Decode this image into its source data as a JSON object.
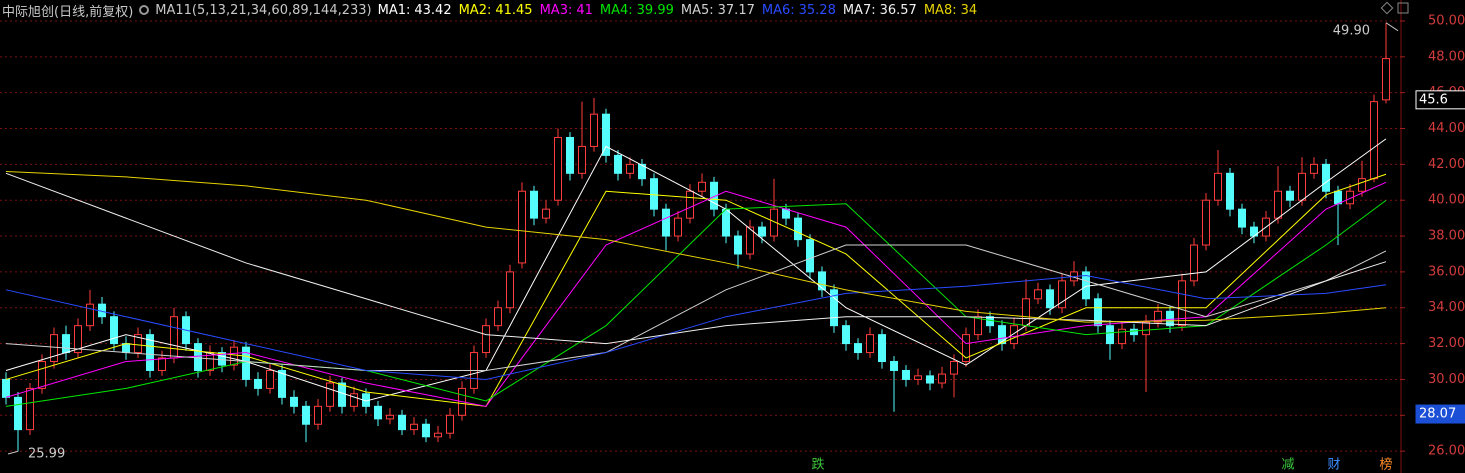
{
  "chart_data": {
    "type": "candlestick",
    "title": "中际旭创(日线,前复权)",
    "indicator": "MA11(5,13,21,34,60,89,144,233)",
    "ylim": [
      24.78,
      51.17
    ],
    "yticks": [
      {
        "value": 26,
        "label": "26.00"
      },
      {
        "value": 28,
        "label": "28.00"
      },
      {
        "value": 30,
        "label": "30.00"
      },
      {
        "value": 32,
        "label": "32.00"
      },
      {
        "value": 34,
        "label": "34.00"
      },
      {
        "value": 36,
        "label": "36.00"
      },
      {
        "value": 38,
        "label": "38.00"
      },
      {
        "value": 40,
        "label": "40.00"
      },
      {
        "value": 42,
        "label": "42.00"
      },
      {
        "value": 44,
        "label": "44.00"
      },
      {
        "value": 46,
        "label": "46.00"
      },
      {
        "value": 48,
        "label": "48.00"
      },
      {
        "value": 50,
        "label": "50.00"
      }
    ],
    "grid": true,
    "up_color": "#ff3c3c",
    "down_color": "#54fcfc",
    "ohlc": [
      [
        30.0,
        30.4,
        28.6,
        29.0
      ],
      [
        29.0,
        29.3,
        25.99,
        27.2
      ],
      [
        27.2,
        29.8,
        26.9,
        29.5
      ],
      [
        29.5,
        31.4,
        29.2,
        31.0
      ],
      [
        31.0,
        32.9,
        30.6,
        32.5
      ],
      [
        32.5,
        33.0,
        31.1,
        31.5
      ],
      [
        31.5,
        33.4,
        31.2,
        33.0
      ],
      [
        33.0,
        35.0,
        32.7,
        34.2
      ],
      [
        34.2,
        34.6,
        33.1,
        33.5
      ],
      [
        33.5,
        33.8,
        31.6,
        32.0
      ],
      [
        32.0,
        32.4,
        31.1,
        31.5
      ],
      [
        31.5,
        32.9,
        31.2,
        32.5
      ],
      [
        32.5,
        32.8,
        30.1,
        30.5
      ],
      [
        30.5,
        31.6,
        30.2,
        31.2
      ],
      [
        31.2,
        34.0,
        30.9,
        33.5
      ],
      [
        33.5,
        33.8,
        31.6,
        32.0
      ],
      [
        32.0,
        32.3,
        30.1,
        30.5
      ],
      [
        30.5,
        31.9,
        30.2,
        31.5
      ],
      [
        31.5,
        31.8,
        30.4,
        30.8
      ],
      [
        30.8,
        32.2,
        30.5,
        31.8
      ],
      [
        31.8,
        32.1,
        29.6,
        30.0
      ],
      [
        30.0,
        30.4,
        29.1,
        29.5
      ],
      [
        29.5,
        30.9,
        29.2,
        30.5
      ],
      [
        30.5,
        30.8,
        28.6,
        29.0
      ],
      [
        29.0,
        29.4,
        28.1,
        28.5
      ],
      [
        28.5,
        28.8,
        26.5,
        27.5
      ],
      [
        27.5,
        28.9,
        27.2,
        28.5
      ],
      [
        28.5,
        30.2,
        28.2,
        29.8
      ],
      [
        29.8,
        30.1,
        28.1,
        28.5
      ],
      [
        28.5,
        29.6,
        28.2,
        29.2
      ],
      [
        29.2,
        29.5,
        28.1,
        28.5
      ],
      [
        28.5,
        28.8,
        27.4,
        27.8
      ],
      [
        27.8,
        28.4,
        27.5,
        28.0
      ],
      [
        28.0,
        28.3,
        26.9,
        27.2
      ],
      [
        27.2,
        27.9,
        26.9,
        27.5
      ],
      [
        27.5,
        27.8,
        26.5,
        26.8
      ],
      [
        26.8,
        27.4,
        26.5,
        27.0
      ],
      [
        27.0,
        28.4,
        26.7,
        28.0
      ],
      [
        28.0,
        29.9,
        27.7,
        29.5
      ],
      [
        29.5,
        31.9,
        29.2,
        31.5
      ],
      [
        31.5,
        33.4,
        31.2,
        33.0
      ],
      [
        33.0,
        34.4,
        32.7,
        34.0
      ],
      [
        34.0,
        36.4,
        33.7,
        36.0
      ],
      [
        36.5,
        41.0,
        36.2,
        40.5
      ],
      [
        40.5,
        40.8,
        38.6,
        39.0
      ],
      [
        39.0,
        40.0,
        38.7,
        39.5
      ],
      [
        40.0,
        44.0,
        39.7,
        43.5
      ],
      [
        43.5,
        43.8,
        41.1,
        41.5
      ],
      [
        41.5,
        45.5,
        41.2,
        43.0
      ],
      [
        43.0,
        45.7,
        42.7,
        44.8
      ],
      [
        44.8,
        45.1,
        42.1,
        42.5
      ],
      [
        42.5,
        42.8,
        41.1,
        41.5
      ],
      [
        41.5,
        42.4,
        41.2,
        42.0
      ],
      [
        42.0,
        42.3,
        40.8,
        41.2
      ],
      [
        41.2,
        41.5,
        39.1,
        39.5
      ],
      [
        39.5,
        39.8,
        37.2,
        38.0
      ],
      [
        38.0,
        39.4,
        37.7,
        39.0
      ],
      [
        39.0,
        40.9,
        38.7,
        40.5
      ],
      [
        40.5,
        41.5,
        40.2,
        41.0
      ],
      [
        41.0,
        41.3,
        39.1,
        39.5
      ],
      [
        39.5,
        39.8,
        37.6,
        38.0
      ],
      [
        38.0,
        38.3,
        36.2,
        37.0
      ],
      [
        37.0,
        38.9,
        36.7,
        38.5
      ],
      [
        38.5,
        38.8,
        37.6,
        38.0
      ],
      [
        38.0,
        41.2,
        37.7,
        39.5
      ],
      [
        39.5,
        39.8,
        38.6,
        39.0
      ],
      [
        39.0,
        39.3,
        37.4,
        37.8
      ],
      [
        37.8,
        38.1,
        35.6,
        36.0
      ],
      [
        36.0,
        36.3,
        34.6,
        35.0
      ],
      [
        35.0,
        35.3,
        32.6,
        33.0
      ],
      [
        33.0,
        33.3,
        31.6,
        32.0
      ],
      [
        32.0,
        32.3,
        31.1,
        31.5
      ],
      [
        31.5,
        32.9,
        31.2,
        32.5
      ],
      [
        32.5,
        32.8,
        30.6,
        31.0
      ],
      [
        31.0,
        31.3,
        28.2,
        30.5
      ],
      [
        30.5,
        30.8,
        29.6,
        30.0
      ],
      [
        30.0,
        30.6,
        29.7,
        30.2
      ],
      [
        30.2,
        30.5,
        29.4,
        29.8
      ],
      [
        29.8,
        30.7,
        29.5,
        30.3
      ],
      [
        30.3,
        31.4,
        29.0,
        31.0
      ],
      [
        31.0,
        32.9,
        30.7,
        32.5
      ],
      [
        32.5,
        33.9,
        32.2,
        33.5
      ],
      [
        33.5,
        33.8,
        32.6,
        33.0
      ],
      [
        33.0,
        33.3,
        31.6,
        32.0
      ],
      [
        32.0,
        33.4,
        31.7,
        33.0
      ],
      [
        33.0,
        35.6,
        32.7,
        34.5
      ],
      [
        34.5,
        35.4,
        34.2,
        35.0
      ],
      [
        35.0,
        35.3,
        33.6,
        34.0
      ],
      [
        34.0,
        35.9,
        33.7,
        35.5
      ],
      [
        35.5,
        36.6,
        35.2,
        36.0
      ],
      [
        36.0,
        36.3,
        34.1,
        34.5
      ],
      [
        34.5,
        34.8,
        32.6,
        33.0
      ],
      [
        33.0,
        33.3,
        31.1,
        32.0
      ],
      [
        32.0,
        33.2,
        31.7,
        32.8
      ],
      [
        32.8,
        33.1,
        32.1,
        32.5
      ],
      [
        32.5,
        33.6,
        29.3,
        33.2
      ],
      [
        33.2,
        34.2,
        32.9,
        33.8
      ],
      [
        33.8,
        34.1,
        32.6,
        33.0
      ],
      [
        33.0,
        35.9,
        32.7,
        35.5
      ],
      [
        35.5,
        37.9,
        35.2,
        37.5
      ],
      [
        37.5,
        40.4,
        37.2,
        40.0
      ],
      [
        40.0,
        42.8,
        39.7,
        41.5
      ],
      [
        41.5,
        41.8,
        39.1,
        39.5
      ],
      [
        39.5,
        39.8,
        38.1,
        38.5
      ],
      [
        38.5,
        38.8,
        37.6,
        38.0
      ],
      [
        38.0,
        39.4,
        37.7,
        39.0
      ],
      [
        39.0,
        41.9,
        38.7,
        40.5
      ],
      [
        40.5,
        40.8,
        39.6,
        40.0
      ],
      [
        40.0,
        42.4,
        39.7,
        41.5
      ],
      [
        41.5,
        42.4,
        41.2,
        42.0
      ],
      [
        42.0,
        42.3,
        40.1,
        40.5
      ],
      [
        40.5,
        40.8,
        37.5,
        39.8
      ],
      [
        39.8,
        40.9,
        39.5,
        40.5
      ],
      [
        40.5,
        42.2,
        40.2,
        41.2
      ],
      [
        41.2,
        45.9,
        41.0,
        45.5
      ],
      [
        45.6,
        49.9,
        45.4,
        47.9
      ]
    ],
    "ma_x": [
      0,
      10,
      20,
      30,
      40,
      50,
      60,
      70,
      80,
      90,
      100,
      110,
      115
    ],
    "series": [
      {
        "name": "MA1:",
        "color": "#ffffff",
        "values": [
          30.5,
          32.5,
          31.0,
          28.8,
          30.5,
          43.0,
          39.5,
          34.0,
          30.8,
          35.2,
          36.0,
          41.0,
          43.42
        ]
      },
      {
        "name": "MA2:",
        "color": "#ffff00",
        "values": [
          30.0,
          32.0,
          31.3,
          29.3,
          28.5,
          40.5,
          40.0,
          37.0,
          31.2,
          34.0,
          34.0,
          40.3,
          41.45
        ]
      },
      {
        "name": "MA3:",
        "color": "#ff00ff",
        "values": [
          29.0,
          31.0,
          31.5,
          29.8,
          28.5,
          37.5,
          40.5,
          38.5,
          32.0,
          33.0,
          33.5,
          39.5,
          41.0
        ]
      },
      {
        "name": "MA4:",
        "color": "#00e600",
        "values": [
          28.5,
          29.5,
          31.0,
          30.5,
          28.8,
          33.0,
          39.5,
          39.8,
          33.5,
          32.5,
          33.0,
          37.5,
          39.99
        ]
      },
      {
        "name": "MA5:",
        "color": "#d0d0d0",
        "values": [
          32.0,
          31.5,
          31.0,
          30.5,
          30.5,
          31.5,
          35.0,
          37.5,
          37.5,
          35.5,
          33.5,
          35.5,
          37.17
        ]
      },
      {
        "name": "MA6:",
        "color": "#2a4bff",
        "values": [
          35.0,
          33.5,
          32.0,
          30.5,
          30.0,
          31.5,
          33.5,
          34.8,
          35.2,
          35.8,
          34.5,
          34.8,
          35.28
        ]
      },
      {
        "name": "MA7:",
        "color": "#f0f0f0",
        "values": [
          41.5,
          39.0,
          36.5,
          34.5,
          32.5,
          32.0,
          33.0,
          33.5,
          33.5,
          33.3,
          33.0,
          35.5,
          36.57
        ]
      },
      {
        "name": "MA8:",
        "color": "#e6d200",
        "values": [
          41.6,
          41.3,
          40.8,
          40.0,
          38.5,
          37.8,
          36.5,
          35.0,
          33.8,
          33.2,
          33.3,
          33.7,
          34.0
        ]
      }
    ],
    "max_label": {
      "value": 49.9,
      "label": "49.90"
    },
    "min_label": {
      "value": 25.99,
      "label": "25.99"
    },
    "price_markers": [
      {
        "value": 45.6,
        "color": "#ffffff"
      },
      {
        "value": 28.07,
        "color": "#1a4fd6"
      }
    ],
    "markers": [
      {
        "label": "跌",
        "color": "#3cc83c"
      },
      {
        "label": "减",
        "color": "#3cc83c"
      },
      {
        "label": "财",
        "color": "#3c8cff"
      },
      {
        "label": "榜",
        "color": "#ff8c28"
      }
    ]
  }
}
